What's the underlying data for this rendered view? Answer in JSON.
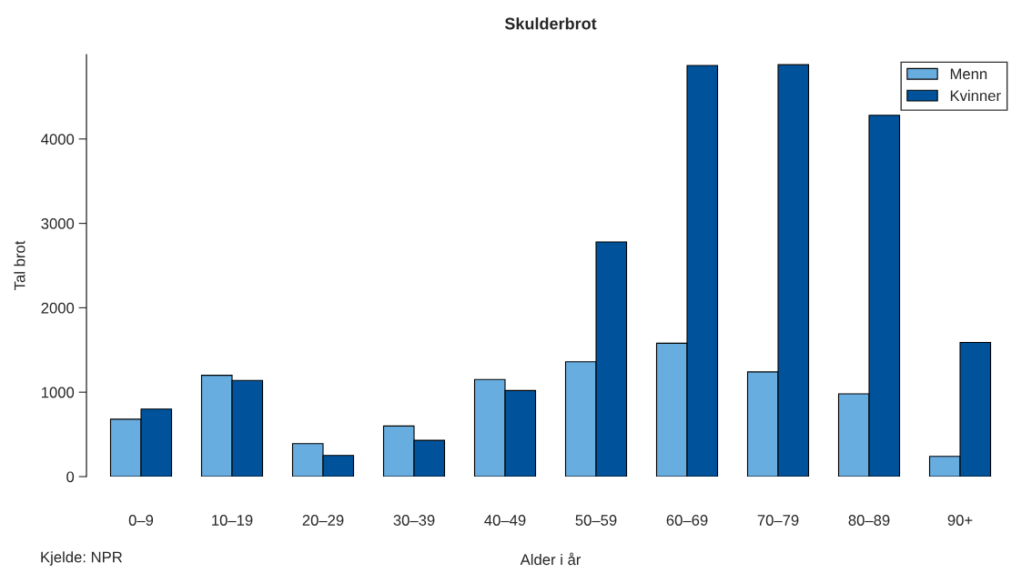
{
  "chart_data": {
    "type": "bar",
    "title": "Skulderbrot",
    "xlabel": "Alder i år",
    "ylabel": "Tal brot",
    "categories": [
      "0–9",
      "10–19",
      "20–29",
      "30–39",
      "40–49",
      "50–59",
      "60–69",
      "70–79",
      "80–89",
      "90+"
    ],
    "series": [
      {
        "name": "Menn",
        "color": "#68ade0",
        "values": [
          680,
          1200,
          390,
          600,
          1150,
          1360,
          1580,
          1240,
          980,
          240
        ]
      },
      {
        "name": "Kvinner",
        "color": "#00539b",
        "values": [
          800,
          1140,
          250,
          430,
          1020,
          2780,
          4870,
          4880,
          4280,
          1590
        ]
      }
    ],
    "ylim": [
      0,
      5000
    ],
    "yticks": [
      0,
      1000,
      2000,
      3000,
      4000
    ],
    "grid": false,
    "legend": "top right",
    "annotations": [
      "Kjelde: NPR"
    ]
  }
}
